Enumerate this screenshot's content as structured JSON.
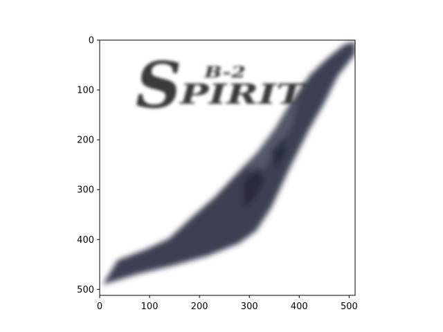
{
  "chart_data": {
    "type": "image",
    "title": "",
    "xlabel": "",
    "ylabel": "",
    "xlim": [
      0,
      512
    ],
    "ylim": [
      512,
      0
    ],
    "x_ticks": [
      0,
      100,
      200,
      300,
      400,
      500
    ],
    "y_ticks": [
      0,
      100,
      200,
      300,
      400,
      500
    ],
    "grid": false,
    "legend": "none",
    "image_content": {
      "description_icon": "blurred-stealth-bomber-photo",
      "logo_text": "SPIRIT",
      "logo_prefix": "B-2",
      "colors": {
        "aircraft": "#3c3f52",
        "aircraft_highlight": "#6a6d80",
        "aircraft_dark": "#24263a",
        "logo": "#3a3a3a",
        "background": "#ffffff"
      }
    }
  }
}
